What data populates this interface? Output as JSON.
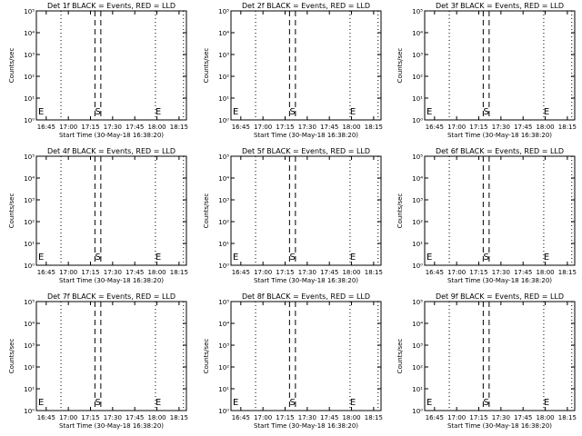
{
  "figure": {
    "background": "#ffffff",
    "ink": "#000000",
    "ytick_labels": [
      "10⁰",
      "10¹",
      "10²",
      "10³",
      "10⁴",
      "10⁵"
    ],
    "xtick_labels": [
      "16:45",
      "17:00",
      "17:15",
      "17:30",
      "17:45",
      "18:00",
      "18:15"
    ]
  },
  "chart_data": [
    {
      "type": "line",
      "title": "Det 1f BLACK = Events, RED = LLD",
      "xlabel": "Start Time (30-May-18 16:38:20)",
      "ylabel": "Counts/sec",
      "yscale": "log",
      "ylim": [
        1,
        100000
      ],
      "xlim": [
        "16:38:20",
        "18:20:00"
      ],
      "xticks": [
        "16:45",
        "17:00",
        "17:15",
        "17:30",
        "17:45",
        "18:00",
        "18:15"
      ],
      "series": [],
      "markers": {
        "E_left": "16:39",
        "S": "17:20",
        "E_right": "17:59"
      },
      "dotted_lines": [
        "16:55",
        "17:59",
        "18:18"
      ],
      "dashed_lines": [
        "17:18",
        "17:22"
      ]
    },
    {
      "type": "line",
      "title": "Det 2f BLACK = Events, RED = LLD",
      "xlabel": "Start Time (30-May-18 16:38:20)",
      "ylabel": "Counts/sec",
      "yscale": "log",
      "ylim": [
        1,
        100000
      ],
      "xlim": [
        "16:38:20",
        "18:20:00"
      ],
      "xticks": [
        "16:45",
        "17:00",
        "17:15",
        "17:30",
        "17:45",
        "18:00",
        "18:15"
      ],
      "series": [],
      "markers": {
        "E_left": "16:39",
        "S": "17:20",
        "E_right": "17:59"
      },
      "dotted_lines": [
        "16:55",
        "17:59",
        "18:18"
      ],
      "dashed_lines": [
        "17:18",
        "17:22"
      ]
    },
    {
      "type": "line",
      "title": "Det 3f BLACK = Events, RED = LLD",
      "xlabel": "Start Time (30-May-18 16:38:20)",
      "ylabel": "Counts/sec",
      "yscale": "log",
      "ylim": [
        1,
        100000
      ],
      "xlim": [
        "16:38:20",
        "18:20:00"
      ],
      "xticks": [
        "16:45",
        "17:00",
        "17:15",
        "17:30",
        "17:45",
        "18:00",
        "18:15"
      ],
      "series": [],
      "markers": {
        "E_left": "16:39",
        "S": "17:20",
        "E_right": "17:59"
      },
      "dotted_lines": [
        "16:55",
        "17:59",
        "18:18"
      ],
      "dashed_lines": [
        "17:18",
        "17:22"
      ]
    },
    {
      "type": "line",
      "title": "Det 4f BLACK = Events, RED = LLD",
      "xlabel": "Start Time (30-May-18 16:38:20)",
      "ylabel": "Counts/sec",
      "yscale": "log",
      "ylim": [
        1,
        100000
      ],
      "xlim": [
        "16:38:20",
        "18:20:00"
      ],
      "xticks": [
        "16:45",
        "17:00",
        "17:15",
        "17:30",
        "17:45",
        "18:00",
        "18:15"
      ],
      "series": [],
      "markers": {
        "E_left": "16:39",
        "S": "17:20",
        "E_right": "17:59"
      },
      "dotted_lines": [
        "16:55",
        "17:59",
        "18:18"
      ],
      "dashed_lines": [
        "17:18",
        "17:22"
      ]
    },
    {
      "type": "line",
      "title": "Det 5f BLACK = Events, RED = LLD",
      "xlabel": "Start Time (30-May-18 16:38:20)",
      "ylabel": "Counts/sec",
      "yscale": "log",
      "ylim": [
        1,
        100000
      ],
      "xlim": [
        "16:38:20",
        "18:20:00"
      ],
      "xticks": [
        "16:45",
        "17:00",
        "17:15",
        "17:30",
        "17:45",
        "18:00",
        "18:15"
      ],
      "series": [],
      "markers": {
        "E_left": "16:39",
        "S": "17:20",
        "E_right": "17:59"
      },
      "dotted_lines": [
        "16:55",
        "17:59",
        "18:18"
      ],
      "dashed_lines": [
        "17:18",
        "17:22"
      ]
    },
    {
      "type": "line",
      "title": "Det 6f BLACK = Events, RED = LLD",
      "xlabel": "Start Time (30-May-18 16:38:20)",
      "ylabel": "Counts/sec",
      "yscale": "log",
      "ylim": [
        1,
        100000
      ],
      "xlim": [
        "16:38:20",
        "18:20:00"
      ],
      "xticks": [
        "16:45",
        "17:00",
        "17:15",
        "17:30",
        "17:45",
        "18:00",
        "18:15"
      ],
      "series": [],
      "markers": {
        "E_left": "16:39",
        "S": "17:20",
        "E_right": "17:59"
      },
      "dotted_lines": [
        "16:55",
        "17:59",
        "18:18"
      ],
      "dashed_lines": [
        "17:18",
        "17:22"
      ]
    },
    {
      "type": "line",
      "title": "Det 7f BLACK = Events, RED = LLD",
      "xlabel": "Start Time (30-May-18 16:38:20)",
      "ylabel": "Counts/sec",
      "yscale": "log",
      "ylim": [
        1,
        100000
      ],
      "xlim": [
        "16:38:20",
        "18:20:00"
      ],
      "xticks": [
        "16:45",
        "17:00",
        "17:15",
        "17:30",
        "17:45",
        "18:00",
        "18:15"
      ],
      "series": [],
      "markers": {
        "E_left": "16:39",
        "S": "17:20",
        "E_right": "17:59"
      },
      "dotted_lines": [
        "16:55",
        "17:59",
        "18:18"
      ],
      "dashed_lines": [
        "17:18",
        "17:22"
      ]
    },
    {
      "type": "line",
      "title": "Det 8f BLACK = Events, RED = LLD",
      "xlabel": "Start Time (30-May-18 16:38:20)",
      "ylabel": "Counts/sec",
      "yscale": "log",
      "ylim": [
        1,
        100000
      ],
      "xlim": [
        "16:38:20",
        "18:20:00"
      ],
      "xticks": [
        "16:45",
        "17:00",
        "17:15",
        "17:30",
        "17:45",
        "18:00",
        "18:15"
      ],
      "series": [],
      "markers": {
        "E_left": "16:39",
        "S": "17:20",
        "E_right": "17:59"
      },
      "dotted_lines": [
        "16:55",
        "17:59",
        "18:18"
      ],
      "dashed_lines": [
        "17:18",
        "17:22"
      ]
    },
    {
      "type": "line",
      "title": "Det 9f BLACK = Events, RED = LLD",
      "xlabel": "Start Time (30-May-18 16:38:20)",
      "ylabel": "Counts/sec",
      "yscale": "log",
      "ylim": [
        1,
        100000
      ],
      "xlim": [
        "16:38:20",
        "18:20:00"
      ],
      "xticks": [
        "16:45",
        "17:00",
        "17:15",
        "17:30",
        "17:45",
        "18:00",
        "18:15"
      ],
      "series": [],
      "markers": {
        "E_left": "16:39",
        "S": "17:20",
        "E_right": "17:59"
      },
      "dotted_lines": [
        "16:55",
        "17:59",
        "18:18"
      ],
      "dashed_lines": [
        "17:18",
        "17:22"
      ]
    }
  ]
}
